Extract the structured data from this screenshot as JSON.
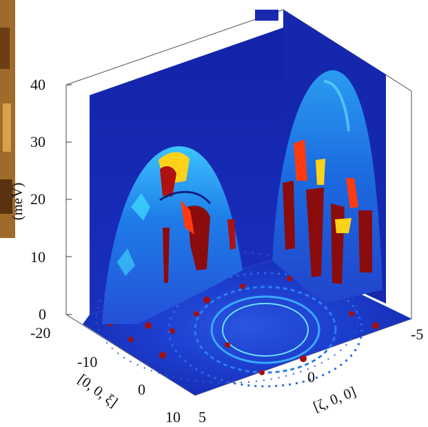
{
  "chart_data": {
    "type": "heatmap",
    "title": "",
    "zlabel": "(meV)",
    "xlabel": "[0, 0, ξ]",
    "ylabel": "[ζ, 0, 0]",
    "z_ticks": [
      "0",
      "10",
      "20",
      "30",
      "40"
    ],
    "zlim": [
      0,
      40
    ],
    "x_ticks": [
      "-20",
      "-10",
      "0",
      "10"
    ],
    "xlim": [
      -20,
      10
    ],
    "y_ticks": [
      "5",
      "0",
      "-5"
    ],
    "ylim": [
      5,
      -5
    ],
    "colormap": [
      "#00008f",
      "#0000ff",
      "#00ffff",
      "#ffff00",
      "#ff0000",
      "#800000"
    ],
    "panels": {
      "left_dispersion_peak_meV": 29,
      "right_dispersion_peak_meV": 42,
      "floor_plane": "constant-energy slice (rings)"
    },
    "grid": false
  },
  "colors": {
    "background": "#ffffff",
    "wall": "#1a29b3",
    "floor": "#1f3fcc",
    "axis": "#555555"
  }
}
